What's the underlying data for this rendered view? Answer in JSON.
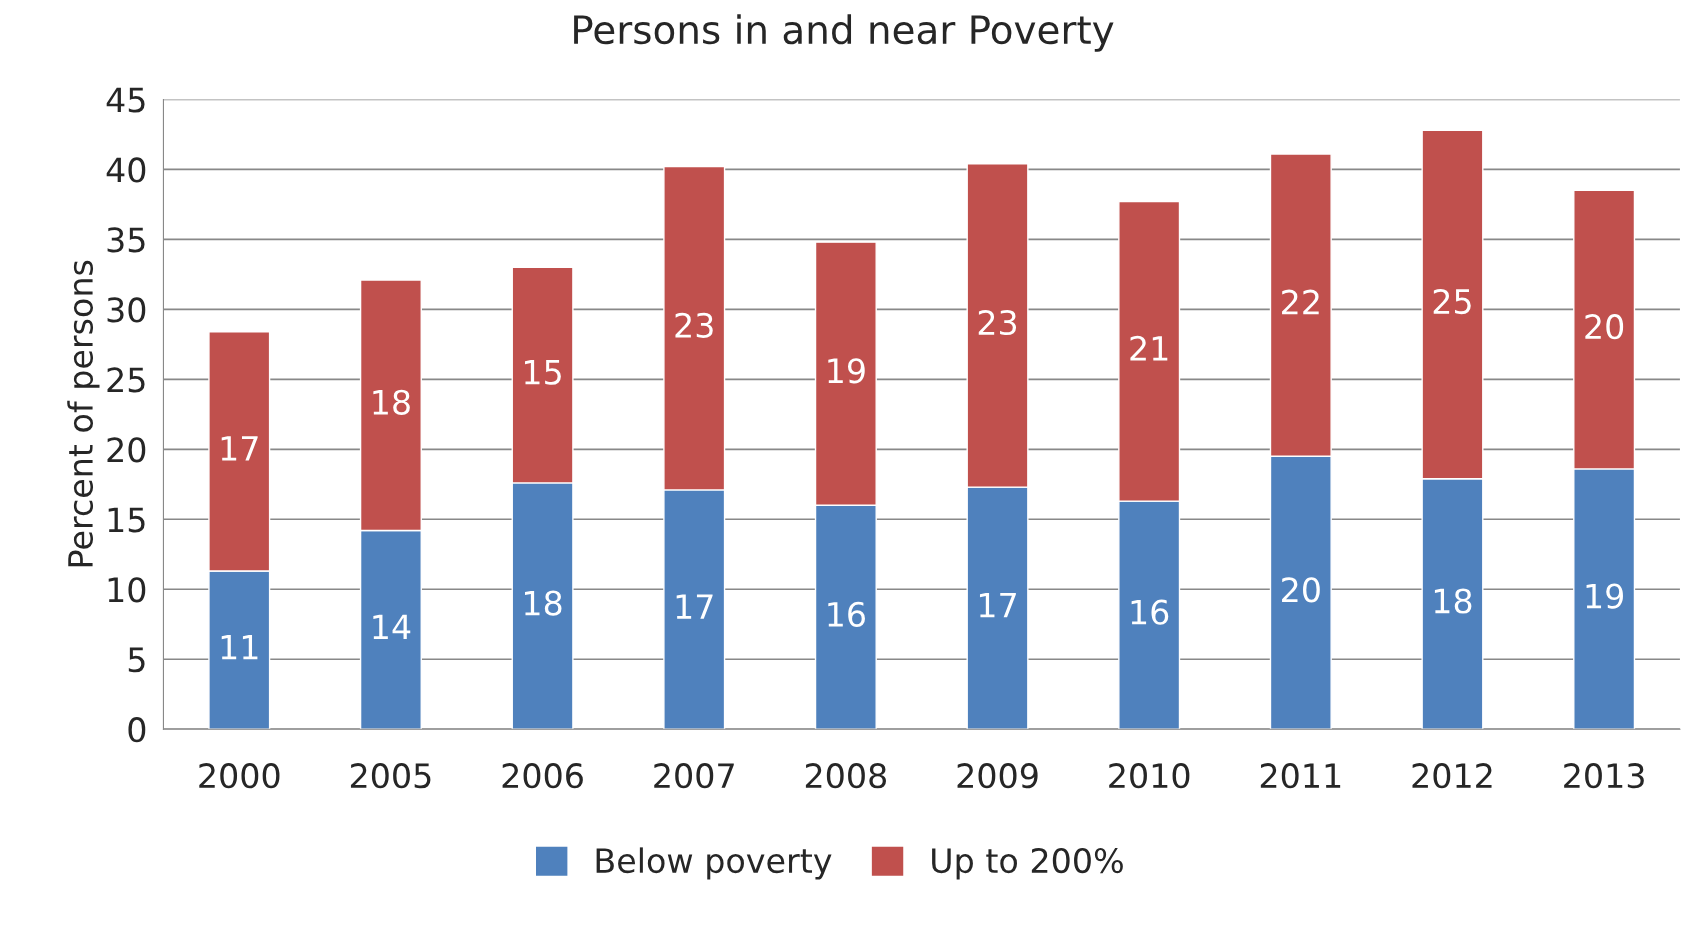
{
  "chart_data": {
    "type": "bar",
    "title": "Persons in and near Poverty",
    "ylabel": "Percent of persons",
    "categories": [
      "2000",
      "2005",
      "2006",
      "2007",
      "2008",
      "2009",
      "2010",
      "2011",
      "2012",
      "2013"
    ],
    "stacked": true,
    "series": [
      {
        "name": "Below poverty",
        "color": "#4f81bd",
        "values": [
          11.3,
          14.2,
          17.6,
          17.1,
          16.0,
          17.3,
          16.3,
          19.5,
          17.9,
          18.6
        ],
        "value_labels": [
          "11",
          "14",
          "18",
          "17",
          "16",
          "17",
          "16",
          "20",
          "18",
          "19"
        ]
      },
      {
        "name": "Up to 200%",
        "color": "#c0504d",
        "values": [
          17.1,
          17.9,
          15.4,
          23.1,
          18.8,
          23.1,
          21.4,
          21.6,
          24.9,
          19.9
        ],
        "value_labels": [
          "17",
          "18",
          "15",
          "23",
          "19",
          "23",
          "21",
          "22",
          "25",
          "20"
        ]
      }
    ],
    "ylim": [
      0,
      45
    ],
    "yticks": [
      0,
      5,
      10,
      15,
      20,
      25,
      30,
      35,
      40,
      45
    ],
    "grid": "y",
    "legend": "bottom"
  }
}
